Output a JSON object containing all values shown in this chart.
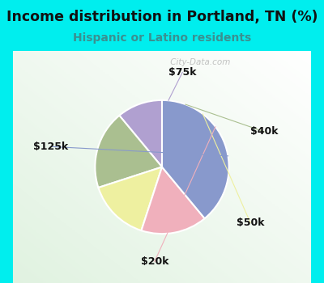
{
  "title": "Income distribution in Portland, TN (%)",
  "subtitle": "Hispanic or Latino residents",
  "title_color": "#111111",
  "subtitle_color": "#3a9090",
  "bg_color": "#00eeee",
  "chart_bg_left": "#d8edd8",
  "chart_bg_right": "#f0f8f0",
  "labels": [
    "$75k",
    "$40k",
    "$50k",
    "$20k",
    "$125k"
  ],
  "sizes": [
    11,
    19,
    15,
    16,
    39
  ],
  "colors": [
    "#b0a0d0",
    "#aabf90",
    "#eef0a0",
    "#f0b0bc",
    "#8899cc"
  ],
  "wedge_linewidth": 1.5,
  "wedge_edgecolor": "#ffffff",
  "startangle": 90,
  "label_color": "#111111",
  "label_fontsize": 9,
  "line_colors": [
    "#b0a0d0",
    "#aabf90",
    "#eef0a0",
    "#f0b0bc",
    "#8899cc"
  ],
  "watermark": " City-Data.com",
  "watermark_color": "#aaaaaa"
}
